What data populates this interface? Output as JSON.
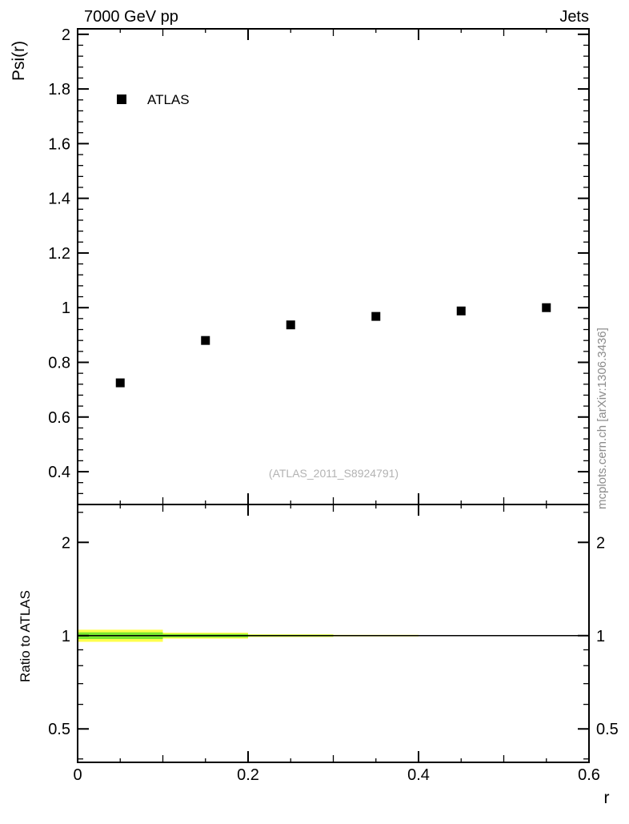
{
  "header": {
    "title_left": "7000 GeV pp",
    "title_right": "Jets"
  },
  "watermark": {
    "analysis": "(ATLAS_2011_S8924791)",
    "side": "mcplots.cern.ch [arXiv:1306.3436]"
  },
  "colors": {
    "marker": "#000000",
    "frame": "#000000",
    "ref_line": "#000000",
    "band_outer": "#ffff4d",
    "band_inner": "#7be82e"
  },
  "chart_data": {
    "type": "scatter",
    "title": "7000 GeV pp / Jets — jet shape Psi(r) with ratio to ATLAS",
    "x": {
      "label": "r",
      "min": 0,
      "max": 0.6,
      "major_ticks": [
        0,
        0.2,
        0.4,
        0.6
      ],
      "major_labels": [
        "0",
        "0.2",
        "0.4",
        "0.6"
      ],
      "mid_ticks": [
        0.1,
        0.3,
        0.5
      ],
      "minor_ticks": [
        0.05,
        0.15,
        0.25,
        0.35,
        0.45,
        0.55
      ]
    },
    "top_panel": {
      "ylabel": "Psi(r)",
      "ymin": 0.28,
      "ymax": 2.02,
      "major_ticks": [
        0.4,
        0.6,
        0.8,
        1,
        1.2,
        1.4,
        1.6,
        1.8,
        2
      ],
      "major_labels": [
        "0.4",
        "0.6",
        "0.8",
        "1",
        "1.2",
        "1.4",
        "1.6",
        "1.8",
        "2"
      ],
      "minor_step": 0.04,
      "legend": {
        "label": "ATLAS",
        "marker": "filled-square"
      },
      "series": [
        {
          "name": "ATLAS",
          "marker": "filled-square",
          "color": "#000000",
          "points": [
            [
              0.05,
              0.725
            ],
            [
              0.15,
              0.88
            ],
            [
              0.25,
              0.937
            ],
            [
              0.35,
              0.968
            ],
            [
              0.45,
              0.988
            ],
            [
              0.55,
              1.0
            ]
          ]
        }
      ]
    },
    "bottom_panel": {
      "ylabel": "Ratio to ATLAS",
      "yscale": "log",
      "ymin": 0.39,
      "ymax": 2.65,
      "major_ticks": [
        0.5,
        1,
        2
      ],
      "major_labels": [
        "0.5",
        "1",
        "2"
      ],
      "minor_ticks": [
        0.4,
        0.6,
        0.7,
        0.8,
        0.9,
        2.5
      ],
      "ref_line_y": 1,
      "ratio_bands": [
        {
          "x0": 0,
          "x1": 0.1,
          "outer_halfwidth": 0.045,
          "inner_halfwidth": 0.025
        },
        {
          "x0": 0.1,
          "x1": 0.2,
          "outer_halfwidth": 0.022,
          "inner_halfwidth": 0.013
        },
        {
          "x0": 0.2,
          "x1": 0.3,
          "outer_halfwidth": 0.01,
          "inner_halfwidth": 0.006
        },
        {
          "x0": 0.3,
          "x1": 0.4,
          "outer_halfwidth": 0.006,
          "inner_halfwidth": 0.004
        }
      ]
    }
  }
}
